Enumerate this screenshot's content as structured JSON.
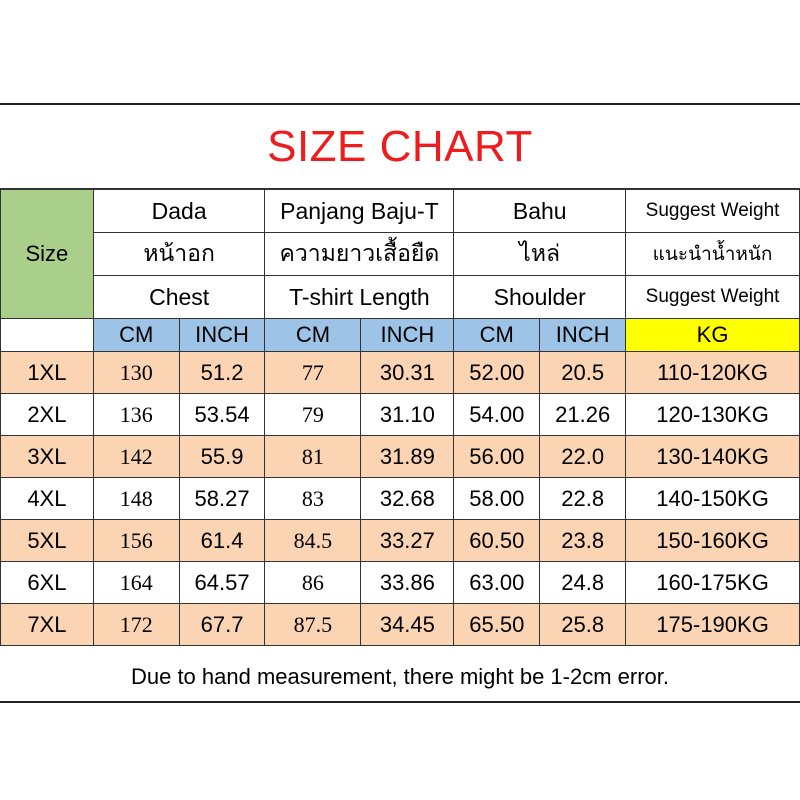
{
  "title": "SIZE CHART",
  "size_header": "Size",
  "column_groups": [
    {
      "ms": "Dada",
      "thai": "หน้าอก",
      "en": "Chest"
    },
    {
      "ms": "Panjang Baju-T",
      "thai": "ความยาวเสื้อยืด",
      "en": "T-shirt Length"
    },
    {
      "ms": "Bahu",
      "thai": "ไหล่",
      "en": "Shoulder"
    },
    {
      "ms": "Suggest Weight",
      "thai": "แนะนำน้ำหนัก",
      "en": "Suggest Weight"
    }
  ],
  "units": [
    "CM",
    "INCH",
    "CM",
    "INCH",
    "CM",
    "INCH",
    "KG"
  ],
  "rows": [
    {
      "size": "1XL",
      "chest_cm": "130",
      "chest_in": "51.2",
      "length_cm": "77",
      "length_in": "30.31",
      "shoulder_cm": "52.00",
      "shoulder_in": "20.5",
      "weight": "110-120KG"
    },
    {
      "size": "2XL",
      "chest_cm": "136",
      "chest_in": "53.54",
      "length_cm": "79",
      "length_in": "31.10",
      "shoulder_cm": "54.00",
      "shoulder_in": "21.26",
      "weight": "120-130KG"
    },
    {
      "size": "3XL",
      "chest_cm": "142",
      "chest_in": "55.9",
      "length_cm": "81",
      "length_in": "31.89",
      "shoulder_cm": "56.00",
      "shoulder_in": "22.0",
      "weight": "130-140KG"
    },
    {
      "size": "4XL",
      "chest_cm": "148",
      "chest_in": "58.27",
      "length_cm": "83",
      "length_in": "32.68",
      "shoulder_cm": "58.00",
      "shoulder_in": "22.8",
      "weight": "140-150KG"
    },
    {
      "size": "5XL",
      "chest_cm": "156",
      "chest_in": "61.4",
      "length_cm": "84.5",
      "length_in": "33.27",
      "shoulder_cm": "60.50",
      "shoulder_in": "23.8",
      "weight": "150-160KG"
    },
    {
      "size": "6XL",
      "chest_cm": "164",
      "chest_in": "64.57",
      "length_cm": "86",
      "length_in": "33.86",
      "shoulder_cm": "63.00",
      "shoulder_in": "24.8",
      "weight": "160-175KG"
    },
    {
      "size": "7XL",
      "chest_cm": "172",
      "chest_in": "67.7",
      "length_cm": "87.5",
      "length_in": "34.45",
      "shoulder_cm": "65.50",
      "shoulder_in": "25.8",
      "weight": "175-190KG"
    }
  ],
  "note": "Due to hand measurement, there might be 1-2cm error.",
  "colors": {
    "title": "#ee1c1c",
    "size_header_bg": "#a9cf8a",
    "unit_bg": "#9dc3e6",
    "kg_bg": "#ffff00",
    "odd_row_bg": "#fbd4b4"
  }
}
